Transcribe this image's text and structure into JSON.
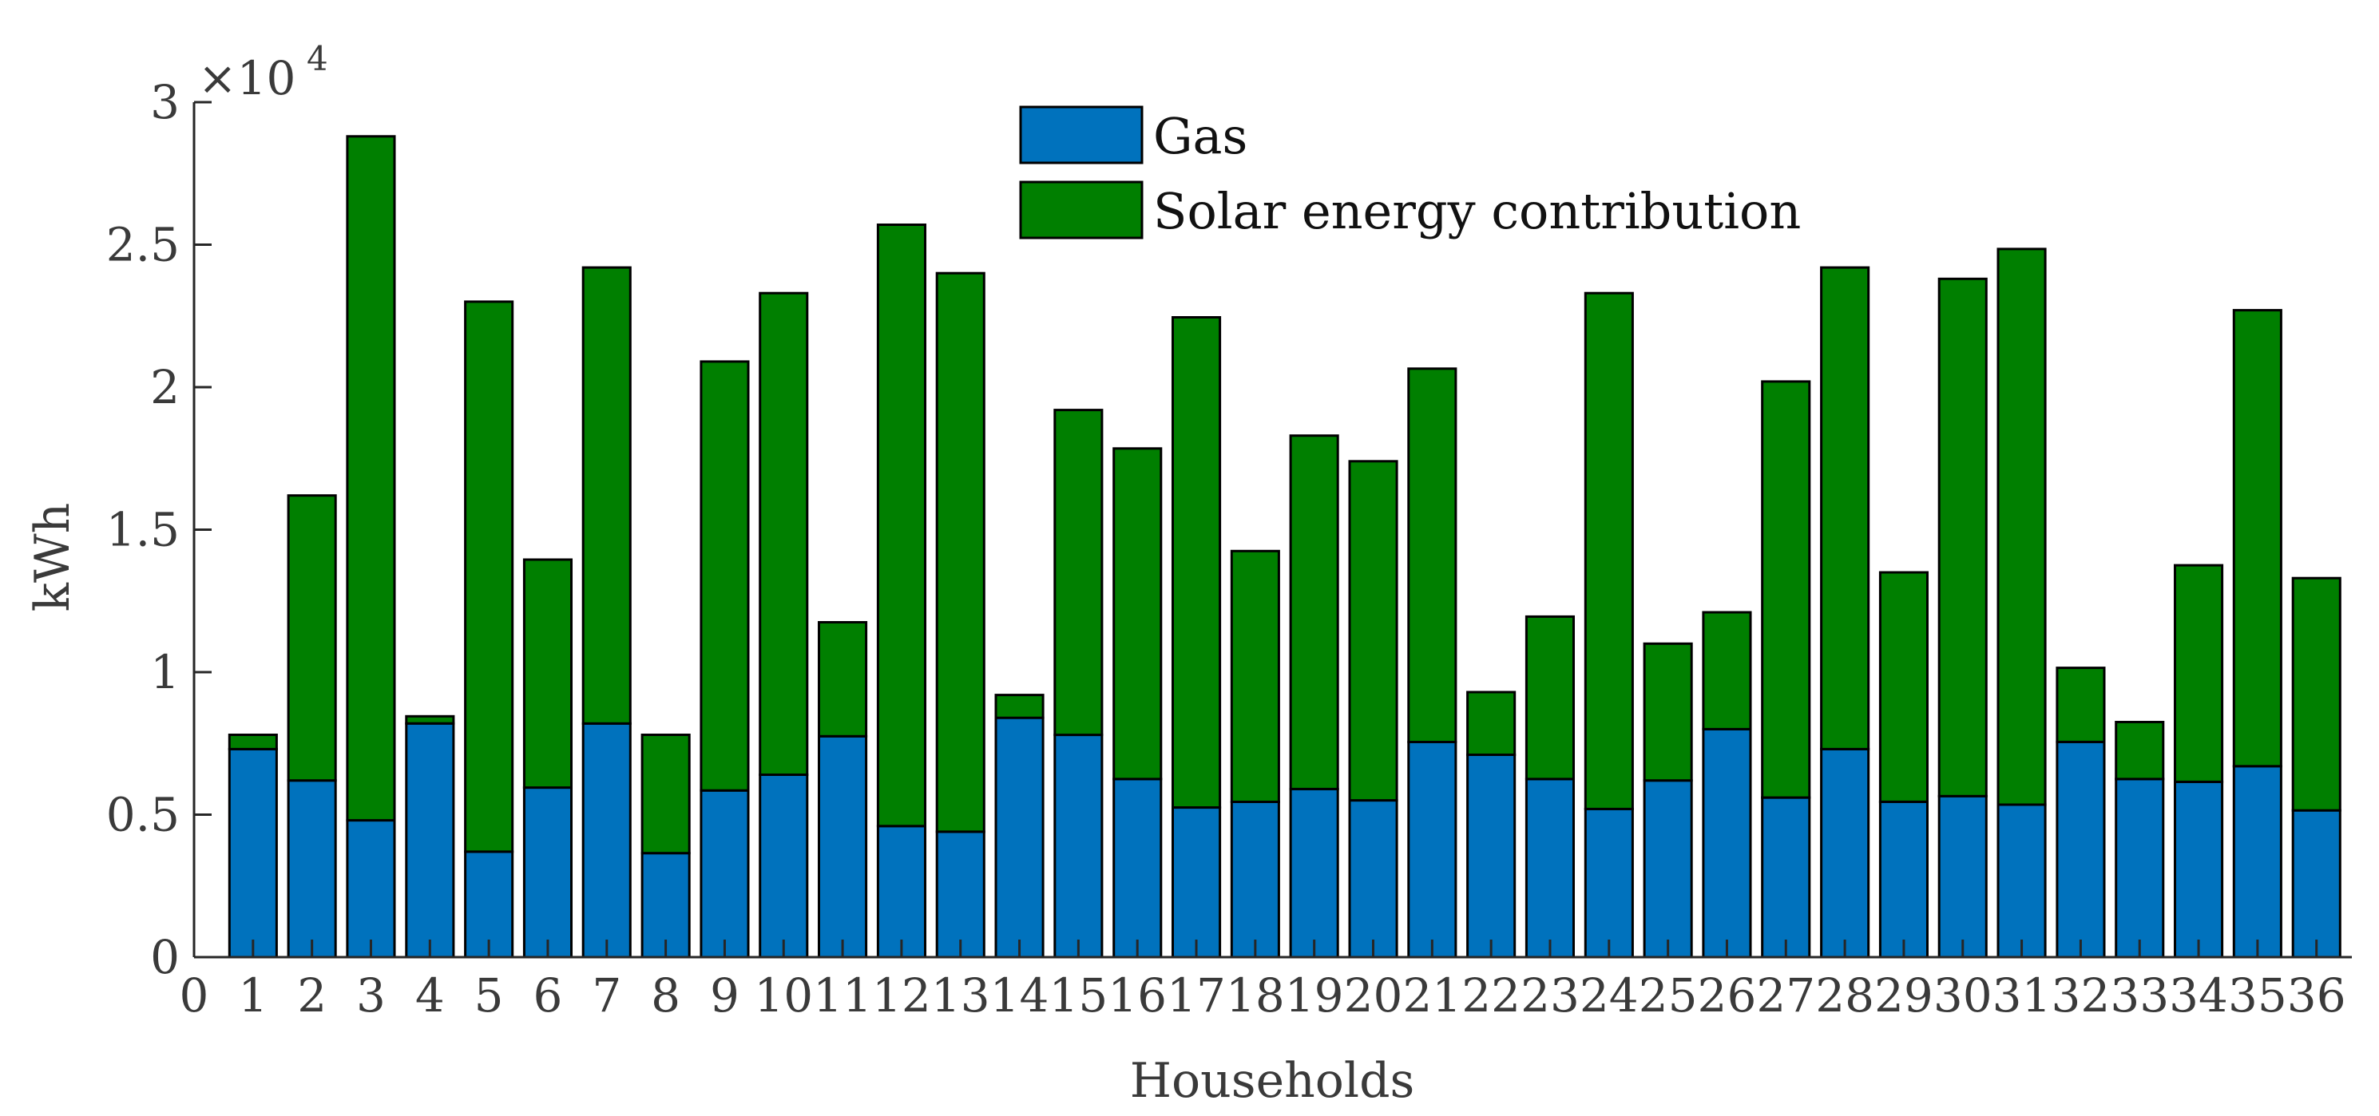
{
  "chart_data": {
    "type": "bar",
    "stacked": true,
    "title": "",
    "xlabel": "Households",
    "ylabel": "kWh",
    "y_scale_label": "×10",
    "y_scale_exponent": "4",
    "xlim": [
      0,
      36.6
    ],
    "ylim": [
      0,
      30000
    ],
    "legend_position": "top-center",
    "x_ticks": [
      "0",
      "1",
      "2",
      "3",
      "4",
      "5",
      "6",
      "7",
      "8",
      "9",
      "10",
      "11",
      "12",
      "13",
      "14",
      "15",
      "16",
      "17",
      "18",
      "19",
      "20",
      "21",
      "22",
      "23",
      "24",
      "25",
      "26",
      "27",
      "28",
      "29",
      "30",
      "31",
      "32",
      "33",
      "34",
      "35",
      "36"
    ],
    "y_ticks": [
      {
        "value": 0,
        "label": "0"
      },
      {
        "value": 5000,
        "label": "0.5"
      },
      {
        "value": 10000,
        "label": "1"
      },
      {
        "value": 15000,
        "label": "1.5"
      },
      {
        "value": 20000,
        "label": "2"
      },
      {
        "value": 25000,
        "label": "2.5"
      },
      {
        "value": 30000,
        "label": "3"
      }
    ],
    "categories": [
      1,
      2,
      3,
      4,
      5,
      6,
      7,
      8,
      9,
      10,
      11,
      12,
      13,
      14,
      15,
      16,
      17,
      18,
      19,
      20,
      21,
      22,
      23,
      24,
      25,
      26,
      27,
      28,
      29,
      30,
      31,
      32,
      33,
      34,
      35,
      36
    ],
    "series": [
      {
        "name": "Gas",
        "color": "#0072BD",
        "values": [
          7300,
          6200,
          4800,
          8200,
          3700,
          5950,
          8200,
          3650,
          5850,
          6400,
          7750,
          4600,
          4400,
          8400,
          7800,
          6250,
          5250,
          5450,
          5900,
          5500,
          7550,
          7100,
          6250,
          5200,
          6200,
          8000,
          5600,
          7300,
          5450,
          5650,
          5350,
          7550,
          6250,
          6150,
          6700,
          5150
        ]
      },
      {
        "name": "Solar energy contribution",
        "color": "#007F00",
        "values": [
          500,
          10000,
          24000,
          250,
          19300,
          8000,
          16000,
          4150,
          15050,
          16900,
          4000,
          21100,
          19600,
          800,
          11400,
          11600,
          17200,
          8800,
          12400,
          11900,
          13100,
          2200,
          5700,
          18100,
          4800,
          4100,
          14600,
          16900,
          8050,
          18150,
          19500,
          2600,
          2000,
          7600,
          16000,
          8150
        ]
      }
    ]
  }
}
